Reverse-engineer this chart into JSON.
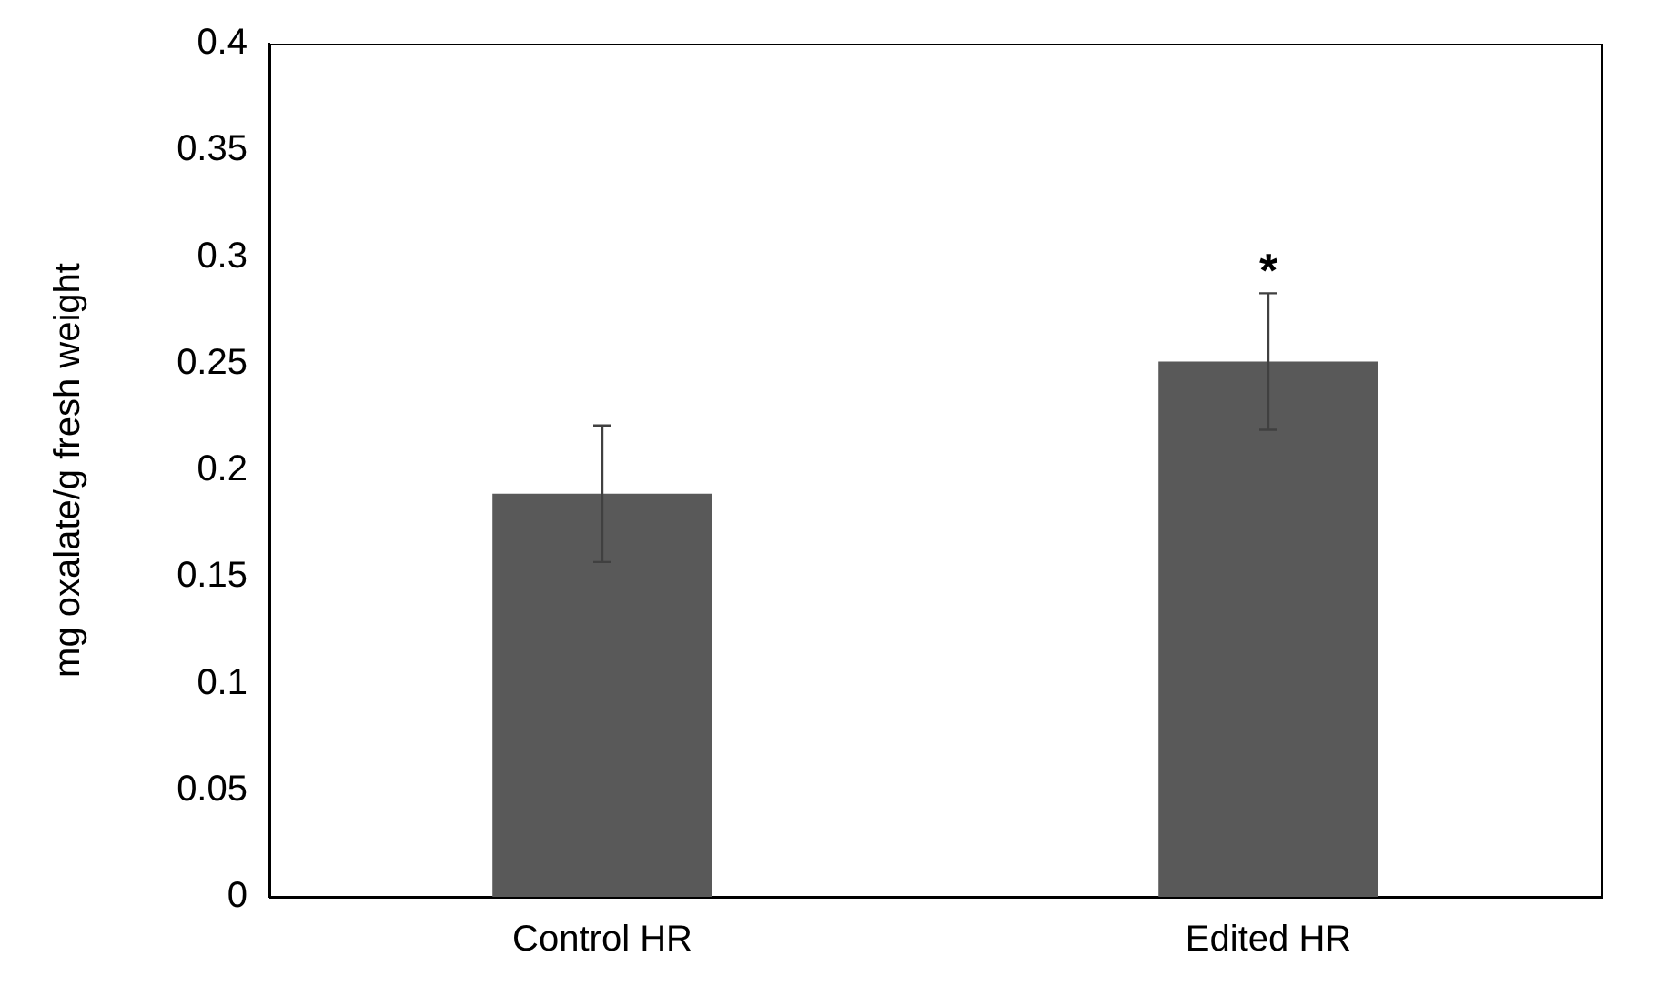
{
  "chart_data": {
    "type": "bar",
    "ylabel": "mg oxalate/g fresh weight",
    "categories": [
      "Control HR",
      "Edited HR"
    ],
    "values": [
      0.189,
      0.251
    ],
    "errors": [
      0.032,
      0.032
    ],
    "value_labels": [
      null,
      "*"
    ],
    "color": "#595959",
    "ylim": [
      0,
      0.4
    ],
    "yticks": [
      0,
      0.05,
      0.1,
      0.15,
      0.2,
      0.25,
      0.3,
      0.35,
      0.4
    ],
    "grid": false,
    "legend": false
  }
}
